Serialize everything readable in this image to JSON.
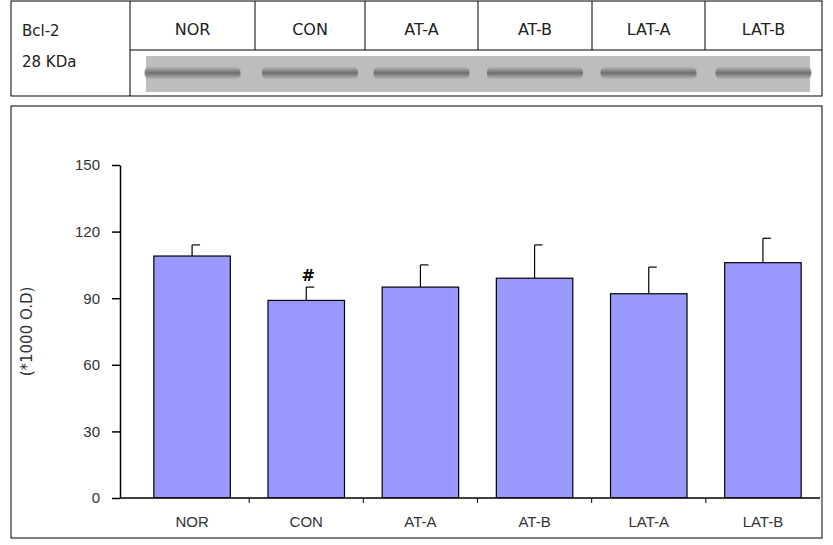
{
  "chart_data": {
    "type": "bar",
    "categories": [
      "NOR",
      "CON",
      "AT-A",
      "AT-B",
      "LAT-A",
      "LAT-B"
    ],
    "values": [
      109,
      89,
      95,
      99,
      92,
      106
    ],
    "errors": [
      5,
      6,
      10,
      15,
      12,
      11
    ],
    "color": "#9999ff",
    "ylabel": "(*1000 O.D)",
    "ylim": [
      0,
      150
    ],
    "yticks": [
      0,
      30,
      60,
      90,
      120,
      150
    ],
    "grid": false,
    "annotations": [
      {
        "text": "#",
        "category": "CON"
      }
    ]
  },
  "blot": {
    "label": "Bcl-2",
    "size": "28 KDa"
  }
}
